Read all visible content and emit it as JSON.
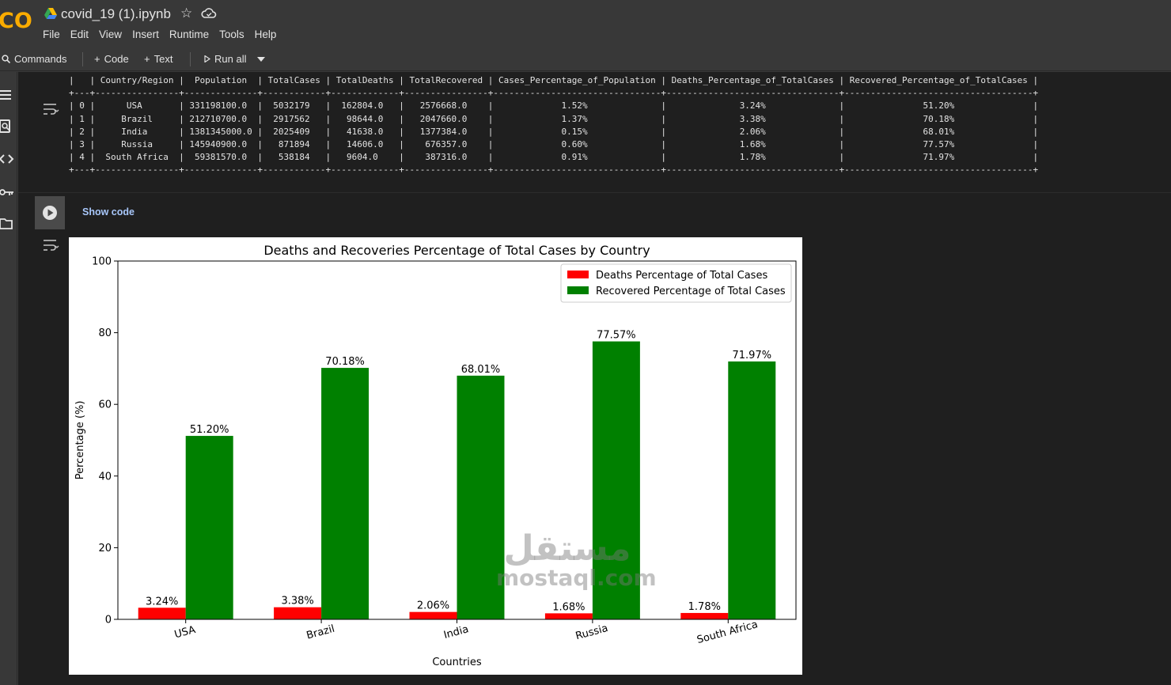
{
  "app": {
    "notebook_title": "covid_19 (1).ipynb",
    "logo_text": "CO",
    "menu": [
      "File",
      "Edit",
      "View",
      "Insert",
      "Runtime",
      "Tools",
      "Help"
    ]
  },
  "toolbar": {
    "commands_label": "Commands",
    "code_label": "Code",
    "text_label": "Text",
    "run_all_label": "Run all"
  },
  "output_table": {
    "columns": [
      "",
      "Country/Region",
      "Population",
      "TotalCases",
      "TotalDeaths",
      "TotalRecovered",
      "Cases_Percentage_of_Population",
      "Deaths_Percentage_of_TotalCases",
      "Recovered_Percentage_of_TotalCases"
    ],
    "rows": [
      [
        "0",
        "USA",
        "331198100.0",
        "5032179",
        "162804.0",
        "2576668.0",
        "1.52%",
        "3.24%",
        "51.20%"
      ],
      [
        "1",
        "Brazil",
        "212710700.0",
        "2917562",
        "98644.0",
        "2047660.0",
        "1.37%",
        "3.38%",
        "70.18%"
      ],
      [
        "2",
        "India",
        "1381345000.0",
        "2025409",
        "41638.0",
        "1377384.0",
        "0.15%",
        "2.06%",
        "68.01%"
      ],
      [
        "3",
        "Russia",
        "145940900.0",
        "871894",
        "14606.0",
        "676357.0",
        "0.60%",
        "1.68%",
        "77.57%"
      ],
      [
        "4",
        "South Africa",
        "59381570.0",
        "538184",
        "9604.0",
        "387316.0",
        "0.91%",
        "1.78%",
        "71.97%"
      ]
    ]
  },
  "cell2": {
    "show_code_label": "Show code"
  },
  "chart_data": {
    "type": "bar",
    "title": "Deaths and Recoveries Percentage of Total Cases by Country",
    "xlabel": "Countries",
    "ylabel": "Percentage (%)",
    "categories": [
      "USA",
      "Brazil",
      "India",
      "Russia",
      "South Africa"
    ],
    "series": [
      {
        "name": "Deaths Percentage of Total Cases",
        "color": "#ff0000",
        "values": [
          3.24,
          3.38,
          2.06,
          1.68,
          1.78
        ],
        "labels": [
          "3.24%",
          "3.38%",
          "2.06%",
          "1.68%",
          "1.78%"
        ]
      },
      {
        "name": "Recovered Percentage of Total Cases",
        "color": "#008000",
        "values": [
          51.2,
          70.18,
          68.01,
          77.57,
          71.97
        ],
        "labels": [
          "51.20%",
          "70.18%",
          "68.01%",
          "77.57%",
          "71.97%"
        ]
      }
    ],
    "ylim": [
      0,
      100
    ],
    "yticks": [
      0,
      20,
      40,
      60,
      80,
      100
    ],
    "grid": false,
    "legend_position": "upper right"
  },
  "watermark": {
    "arabic": "مستقل",
    "latin": "mostaql.com"
  },
  "icons": {
    "drive": "google-drive-icon",
    "star": "star-icon",
    "cloud": "cloud-icon",
    "search": "search-icon",
    "play": "play-icon",
    "output": "output-toggle-icon"
  }
}
